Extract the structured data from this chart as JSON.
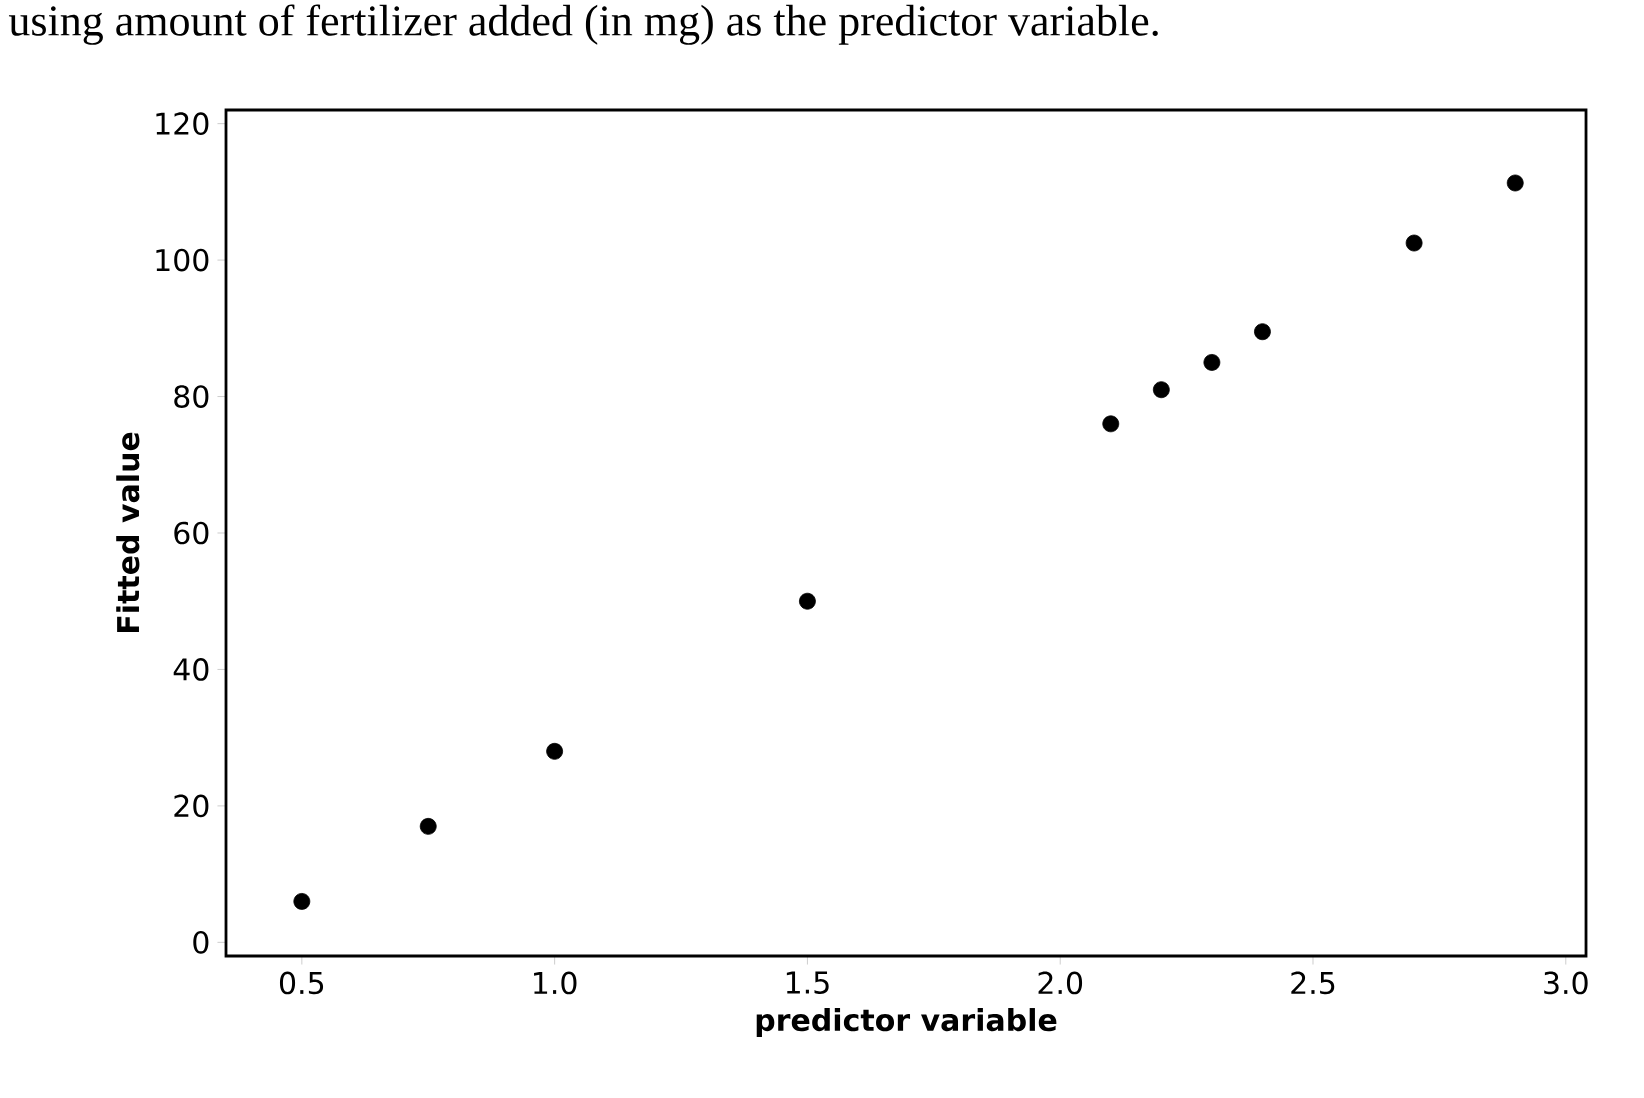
{
  "chart_data": {
    "type": "scatter",
    "xlabel": "predictor variable",
    "ylabel": "Fitted value",
    "annotations": [
      "using amount of fertilizer added (in mg) as the predictor variable."
    ],
    "x": [
      0.5,
      0.75,
      1.0,
      1.5,
      2.1,
      2.2,
      2.3,
      2.4,
      2.7,
      2.9
    ],
    "values": [
      6,
      17,
      28,
      50,
      76,
      81,
      85,
      89.5,
      102.5,
      111.3
    ],
    "color": "#000000",
    "marker": "circle",
    "grid": false,
    "xlim": [
      0.35,
      3.04
    ],
    "ylim": [
      -2,
      122
    ],
    "xticks": [
      {
        "value": 0.5,
        "label": "0.5"
      },
      {
        "value": 1.0,
        "label": "1.0"
      },
      {
        "value": 1.5,
        "label": "1.5"
      },
      {
        "value": 2.0,
        "label": "2.0"
      },
      {
        "value": 2.5,
        "label": "2.5"
      },
      {
        "value": 3.0,
        "label": "3.0"
      }
    ],
    "yticks": [
      0,
      20,
      40,
      60,
      80,
      100,
      120
    ]
  }
}
